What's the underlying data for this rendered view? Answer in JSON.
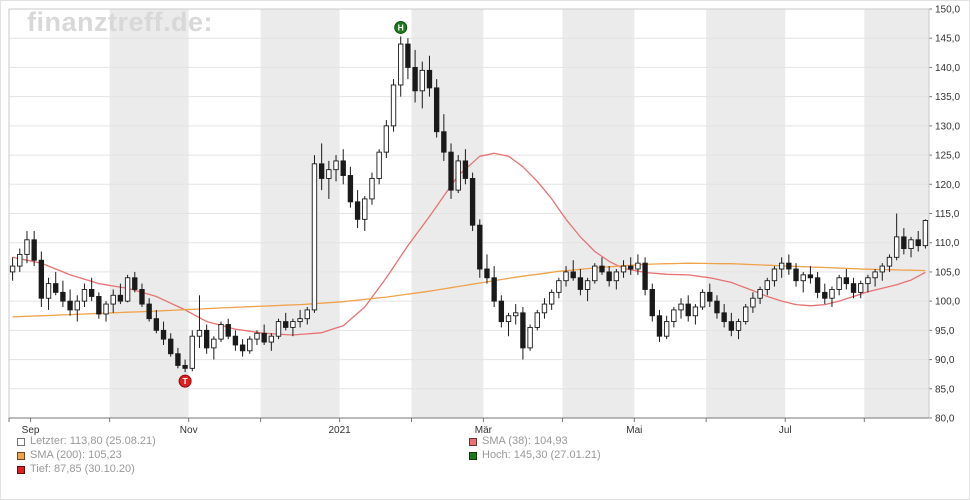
{
  "watermark": "finanztreff.de:",
  "colors": {
    "up_candle": "#ffffff",
    "down_candle": "#1a1a1a",
    "candle_stroke": "#1a1a1a",
    "band": "#ebebeb",
    "grid": "#e3e3e3",
    "plot_border": "#c9c9c9",
    "axis_line": "#777777",
    "tick_text": "#333333",
    "legend_text": "#999999",
    "watermark": "#d8d8d8"
  },
  "chart_data": {
    "type": "candlestick",
    "title": "",
    "xlabel": "",
    "ylabel": "",
    "ylim": [
      80,
      150
    ],
    "y_ticks": [
      {
        "v": 80,
        "label": "80,0"
      },
      {
        "v": 85,
        "label": "85,0"
      },
      {
        "v": 90,
        "label": "90,0"
      },
      {
        "v": 95,
        "label": "95,0"
      },
      {
        "v": 100,
        "label": "100,0"
      },
      {
        "v": 105,
        "label": "105,0"
      },
      {
        "v": 110,
        "label": "110,0"
      },
      {
        "v": 115,
        "label": "115,0"
      },
      {
        "v": 120,
        "label": "120,0"
      },
      {
        "v": 125,
        "label": "125,0"
      },
      {
        "v": 130,
        "label": "130,0"
      },
      {
        "v": 135,
        "label": "135,0"
      },
      {
        "v": 140,
        "label": "140,0"
      },
      {
        "v": 145,
        "label": "145,0"
      },
      {
        "v": 150,
        "label": "150,0"
      }
    ],
    "months": [
      {
        "label": "",
        "start": 0,
        "shaded": false
      },
      {
        "label": "Sep",
        "start": 3,
        "shaded": false
      },
      {
        "label": "",
        "start": 14,
        "shaded": true
      },
      {
        "label": "Nov",
        "start": 25,
        "shaded": false
      },
      {
        "label": "",
        "start": 35,
        "shaded": true
      },
      {
        "label": "2021",
        "start": 46,
        "shaded": false
      },
      {
        "label": "",
        "start": 56,
        "shaded": true
      },
      {
        "label": "Mär",
        "start": 66,
        "shaded": false
      },
      {
        "label": "",
        "start": 77,
        "shaded": true
      },
      {
        "label": "Mai",
        "start": 87,
        "shaded": false
      },
      {
        "label": "",
        "start": 97,
        "shaded": true
      },
      {
        "label": "Jul",
        "start": 108,
        "shaded": false
      },
      {
        "label": "",
        "start": 119,
        "shaded": true
      }
    ],
    "candles": [
      [
        105,
        107.5,
        103.5,
        106
      ],
      [
        106,
        109,
        105,
        108
      ],
      [
        108,
        112,
        106.5,
        110.5
      ],
      [
        110.5,
        112,
        106,
        107
      ],
      [
        107,
        108.5,
        99,
        100.5
      ],
      [
        100.5,
        104,
        98.5,
        103
      ],
      [
        103,
        105,
        101,
        101.5
      ],
      [
        101.5,
        103.5,
        99,
        100
      ],
      [
        100,
        102,
        97.5,
        98.5
      ],
      [
        98.5,
        101,
        96.5,
        100
      ],
      [
        100,
        103,
        99,
        102
      ],
      [
        102,
        104,
        100,
        100.8
      ],
      [
        100.8,
        101.5,
        97,
        97.8
      ],
      [
        97.8,
        100,
        96.5,
        99.5
      ],
      [
        99.5,
        102,
        98,
        101
      ],
      [
        101,
        103,
        99.5,
        100
      ],
      [
        100,
        104.5,
        99.8,
        104
      ],
      [
        104,
        105,
        101.5,
        102
      ],
      [
        102,
        103,
        99,
        99.5
      ],
      [
        99.5,
        100.5,
        96.5,
        97
      ],
      [
        97,
        98.5,
        94.5,
        95
      ],
      [
        95,
        96.5,
        92.5,
        93.5
      ],
      [
        93.5,
        94.5,
        90.5,
        91
      ],
      [
        91,
        92,
        88.5,
        89
      ],
      [
        89,
        90,
        87.85,
        88.5
      ],
      [
        88.5,
        95,
        88,
        94
      ],
      [
        94,
        101,
        92,
        95
      ],
      [
        95,
        96,
        91,
        92
      ],
      [
        92,
        94,
        90,
        93.5
      ],
      [
        93.5,
        96.5,
        93,
        96
      ],
      [
        96,
        97,
        93.5,
        94
      ],
      [
        94,
        95,
        91.5,
        92.5
      ],
      [
        92.5,
        93.5,
        90.5,
        91.5
      ],
      [
        91.5,
        94,
        91,
        93.5
      ],
      [
        93.5,
        95,
        92.5,
        94.5
      ],
      [
        94.5,
        96,
        92.5,
        93
      ],
      [
        93,
        94.5,
        91.5,
        94
      ],
      [
        94,
        97,
        93.5,
        96.5
      ],
      [
        96.5,
        98,
        95,
        95.5
      ],
      [
        95.5,
        97,
        94,
        96.5
      ],
      [
        96.5,
        98.5,
        95.5,
        97
      ],
      [
        97,
        99,
        96,
        98.5
      ],
      [
        98.5,
        125,
        98,
        123.5
      ],
      [
        123.5,
        127,
        119,
        121
      ],
      [
        121,
        124,
        117.5,
        122.5
      ],
      [
        122.5,
        125,
        120.5,
        124
      ],
      [
        124,
        126,
        120,
        121.5
      ],
      [
        121.5,
        123,
        116,
        117
      ],
      [
        117,
        119,
        112.5,
        114
      ],
      [
        114,
        118,
        112,
        117.5
      ],
      [
        117.5,
        122,
        116.5,
        121
      ],
      [
        121,
        126,
        120,
        125.5
      ],
      [
        125.5,
        131,
        124.5,
        130
      ],
      [
        130,
        138,
        129,
        137
      ],
      [
        137,
        145.3,
        135,
        144
      ],
      [
        144,
        145,
        138,
        140
      ],
      [
        140,
        143,
        134,
        136
      ],
      [
        136,
        141,
        133,
        139.5
      ],
      [
        139.5,
        142,
        135,
        136.5
      ],
      [
        136.5,
        138,
        128,
        129
      ],
      [
        129,
        132,
        124,
        125.5
      ],
      [
        125.5,
        127,
        117.5,
        119
      ],
      [
        119,
        125,
        118.5,
        124
      ],
      [
        124,
        126,
        120,
        121
      ],
      [
        121,
        122,
        112,
        113
      ],
      [
        113,
        114,
        104,
        105.5
      ],
      [
        105.5,
        108,
        103,
        104
      ],
      [
        104,
        106,
        99,
        100
      ],
      [
        100,
        101,
        95.5,
        96.5
      ],
      [
        96.5,
        98,
        94,
        97.5
      ],
      [
        97.5,
        99.5,
        96,
        98
      ],
      [
        98,
        99,
        90,
        92
      ],
      [
        92,
        96,
        91.5,
        95.5
      ],
      [
        95.5,
        98.5,
        95,
        98
      ],
      [
        98,
        100.5,
        97,
        99.5
      ],
      [
        99.5,
        102,
        98.5,
        101.5
      ],
      [
        101.5,
        104,
        100.5,
        103.5
      ],
      [
        103.5,
        106,
        102.5,
        105
      ],
      [
        105,
        107,
        103.5,
        104
      ],
      [
        104,
        105.5,
        101,
        102
      ],
      [
        102,
        104,
        100,
        103.5
      ],
      [
        103.5,
        106.5,
        103,
        106
      ],
      [
        106,
        107.5,
        104.5,
        105
      ],
      [
        105,
        106,
        102.5,
        103.5
      ],
      [
        103.5,
        105.5,
        102,
        105
      ],
      [
        105,
        107,
        104,
        106
      ],
      [
        106,
        107.5,
        104.5,
        105.5
      ],
      [
        105.5,
        108,
        104.5,
        106.5
      ],
      [
        106.5,
        107.5,
        101,
        102
      ],
      [
        102,
        103,
        96.5,
        97.5
      ],
      [
        97.5,
        98.5,
        93,
        94
      ],
      [
        94,
        97.5,
        93.5,
        96.5
      ],
      [
        96.5,
        99,
        95.5,
        98.5
      ],
      [
        98.5,
        100.5,
        97,
        99.5
      ],
      [
        99.5,
        101,
        96.5,
        97.5
      ],
      [
        97.5,
        99.5,
        96,
        99
      ],
      [
        99,
        102,
        98.5,
        101.5
      ],
      [
        101.5,
        103,
        99,
        100
      ],
      [
        100,
        101,
        97,
        98
      ],
      [
        98,
        99.5,
        95.5,
        96.5
      ],
      [
        96.5,
        98,
        94,
        95
      ],
      [
        95,
        97,
        93.5,
        96.5
      ],
      [
        96.5,
        99.5,
        96,
        99
      ],
      [
        99,
        101.5,
        98,
        100.5
      ],
      [
        100.5,
        102.5,
        99.5,
        102
      ],
      [
        102,
        104,
        101,
        103.5
      ],
      [
        103.5,
        106,
        102.5,
        105.5
      ],
      [
        105.5,
        107.5,
        104,
        106.5
      ],
      [
        106.5,
        108,
        104.5,
        105.5
      ],
      [
        105.5,
        106.5,
        102.5,
        103.5
      ],
      [
        103.5,
        105,
        101.5,
        104.5
      ],
      [
        104.5,
        106,
        103,
        104
      ],
      [
        104,
        105,
        100.5,
        101.5
      ],
      [
        101.5,
        103,
        99.5,
        100.5
      ],
      [
        100.5,
        102.5,
        99,
        102
      ],
      [
        102,
        104.5,
        101,
        104
      ],
      [
        104,
        105.5,
        102,
        103
      ],
      [
        103,
        104,
        100.5,
        101.5
      ],
      [
        101.5,
        103.5,
        100.5,
        103
      ],
      [
        103,
        104.5,
        101.5,
        104
      ],
      [
        104,
        105.5,
        102.5,
        105
      ],
      [
        105,
        106.5,
        103.5,
        106
      ],
      [
        106,
        108,
        105,
        107.5
      ],
      [
        107.5,
        115,
        107,
        111
      ],
      [
        111,
        112.5,
        108,
        109
      ],
      [
        109,
        111,
        107.5,
        110.5
      ],
      [
        110.5,
        112,
        108.5,
        109.5
      ],
      [
        109.5,
        114,
        109,
        113.8
      ]
    ],
    "series": [
      {
        "name": "SMA (38)",
        "color": "#e87272",
        "points": [
          [
            0,
            107.5
          ],
          [
            4,
            106.5
          ],
          [
            8,
            104.5
          ],
          [
            12,
            103
          ],
          [
            16,
            102.2
          ],
          [
            20,
            100.8
          ],
          [
            24,
            98.5
          ],
          [
            27,
            96.5
          ],
          [
            31,
            95.2
          ],
          [
            35,
            94.5
          ],
          [
            39,
            94.2
          ],
          [
            43,
            94.6
          ],
          [
            46,
            95.8
          ],
          [
            49,
            99
          ],
          [
            52,
            104
          ],
          [
            55,
            109.5
          ],
          [
            58,
            114.5
          ],
          [
            60,
            118
          ],
          [
            62,
            121.5
          ],
          [
            65,
            124.8
          ],
          [
            67,
            125.3
          ],
          [
            69,
            124.8
          ],
          [
            71,
            123
          ],
          [
            73,
            120.5
          ],
          [
            75,
            117.5
          ],
          [
            77,
            114
          ],
          [
            79,
            111
          ],
          [
            81,
            108.5
          ],
          [
            83,
            106.8
          ],
          [
            85,
            105.6
          ],
          [
            88,
            104.9
          ],
          [
            91,
            104.6
          ],
          [
            94,
            104.5
          ],
          [
            97,
            104
          ],
          [
            100,
            103.2
          ],
          [
            103,
            101.8
          ],
          [
            105,
            100.8
          ],
          [
            107,
            100
          ],
          [
            109,
            99.4
          ],
          [
            111,
            99.2
          ],
          [
            113,
            99.4
          ],
          [
            115,
            100
          ],
          [
            117,
            100.8
          ],
          [
            119,
            101.6
          ],
          [
            121,
            102.2
          ],
          [
            123,
            102.8
          ],
          [
            125,
            103.6
          ],
          [
            127,
            104.93
          ]
        ]
      },
      {
        "name": "SMA (200)",
        "color": "#f0a24b",
        "points": [
          [
            0,
            97.3
          ],
          [
            10,
            97.8
          ],
          [
            20,
            98.3
          ],
          [
            30,
            98.9
          ],
          [
            40,
            99.4
          ],
          [
            46,
            99.9
          ],
          [
            52,
            100.7
          ],
          [
            58,
            101.7
          ],
          [
            64,
            102.9
          ],
          [
            70,
            104.1
          ],
          [
            76,
            105.1
          ],
          [
            82,
            105.8
          ],
          [
            88,
            106.3
          ],
          [
            94,
            106.5
          ],
          [
            100,
            106.4
          ],
          [
            106,
            106.1
          ],
          [
            112,
            105.8
          ],
          [
            118,
            105.5
          ],
          [
            127,
            105.23
          ]
        ]
      }
    ],
    "markers": [
      {
        "key": "hoch",
        "letter": "H",
        "index": 54,
        "price": 145.3,
        "placement": "above",
        "fill": "#1d7a1d",
        "ring": "#0c4f0c",
        "date": "27.01.21"
      },
      {
        "key": "tief",
        "letter": "T",
        "index": 24,
        "price": 87.85,
        "placement": "below",
        "fill": "#d92121",
        "ring": "#8c0f0f",
        "date": "30.10.20"
      }
    ],
    "legend": {
      "columns": [
        [
          {
            "key": "letzter",
            "swatch": "#ffffff",
            "text": "Letzter: 113,80 (25.08.21)"
          },
          {
            "key": "sma200",
            "swatch": "#f0a24b",
            "text": "SMA (200): 105,23"
          },
          {
            "key": "tief",
            "swatch": "#d92121",
            "text": "Tief: 87,85 (30.10.20)"
          }
        ],
        [
          {
            "key": "sma38",
            "swatch": "#e87272",
            "text": "SMA (38): 104,93"
          },
          {
            "key": "hoch",
            "swatch": "#1d7a1d",
            "text": "Hoch: 145,30 (27.01.21)"
          }
        ]
      ]
    }
  }
}
